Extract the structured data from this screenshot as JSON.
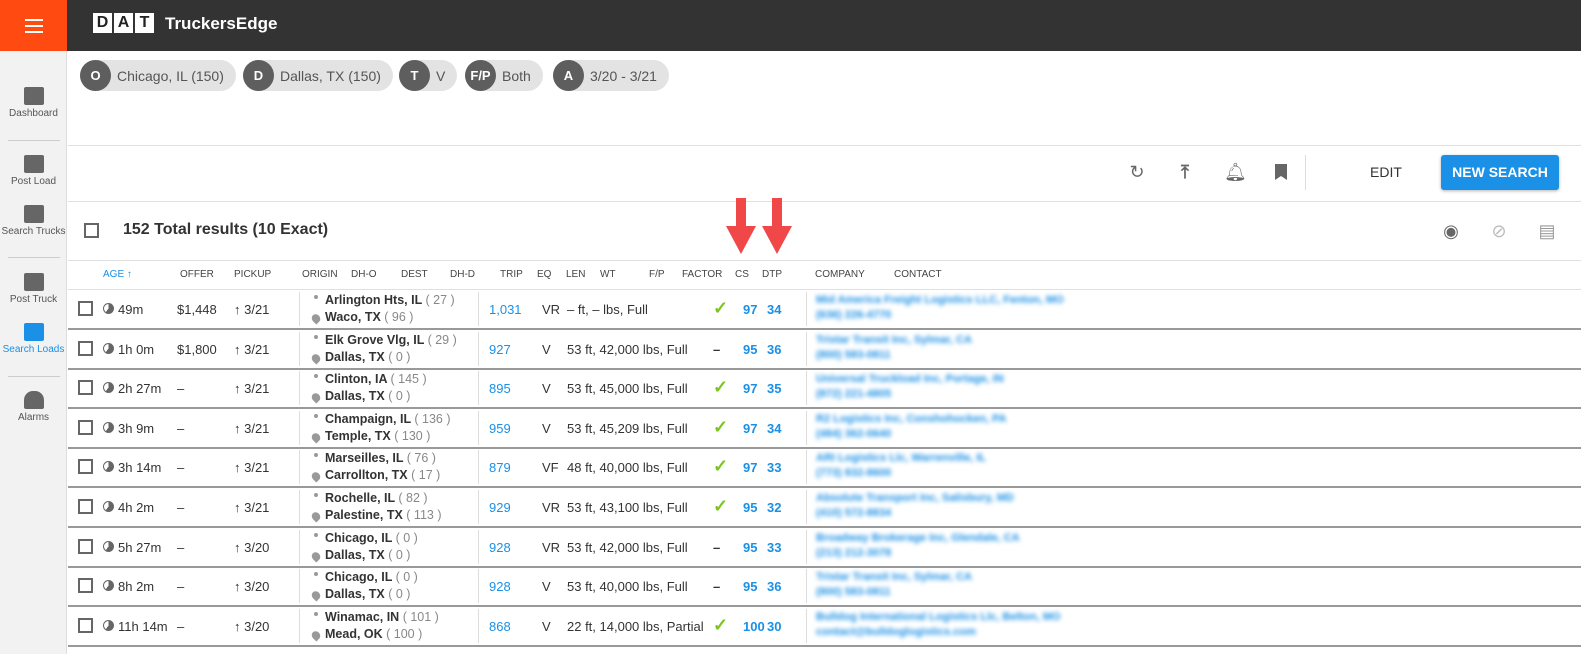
{
  "header": {
    "logo": "DAT",
    "brand": "TruckersEdge"
  },
  "sidebar": {
    "items": [
      {
        "label": "Dashboard"
      },
      {
        "label": "Post Load"
      },
      {
        "label": "Search Trucks"
      },
      {
        "label": "Post Truck"
      },
      {
        "label": "Search Loads",
        "active": true
      },
      {
        "label": "Alarms"
      }
    ]
  },
  "filters": [
    {
      "badge": "O",
      "value": "Chicago, IL (150)"
    },
    {
      "badge": "D",
      "value": "Dallas, TX (150)"
    },
    {
      "badge": "T",
      "value": "V"
    },
    {
      "badge": "F/P",
      "value": "Both"
    },
    {
      "badge": "A",
      "value": "3/20 - 3/21"
    }
  ],
  "toolbar": {
    "edit": "EDIT",
    "new_search": "NEW SEARCH"
  },
  "results": {
    "total": "152 Total results (10 Exact)"
  },
  "columns": [
    "AGE ↑",
    "OFFER",
    "PICKUP",
    "ORIGIN",
    "DH-O",
    "DEST",
    "DH-D",
    "TRIP",
    "EQ",
    "LEN",
    "WT",
    "F/P",
    "FACTOR",
    "CS",
    "DTP",
    "COMPANY",
    "CONTACT"
  ],
  "colors": {
    "accent": "#1a90e6",
    "menu": "#ff4a12",
    "check": "#7cc520",
    "annotation_arrow": "#f04848"
  },
  "rows": [
    {
      "age": "49m",
      "offer": "$1,448",
      "pickup": "↑ 3/21",
      "origin": "Arlington Hts, IL",
      "dho": "( 27 )",
      "dest": "Waco, TX",
      "dhd": "( 96 )",
      "trip": "1,031",
      "eq": "VR",
      "lenwt": "– ft, – lbs, Full",
      "factor": "✓",
      "cs": "97",
      "dtp": "34",
      "company": "Mid America Freight Logistics LLC, Fenton, MO",
      "contact": "(636) 226-4770"
    },
    {
      "age": "1h 0m",
      "offer": "$1,800",
      "pickup": "↑ 3/21",
      "origin": "Elk Grove Vlg, IL",
      "dho": "( 29 )",
      "dest": "Dallas, TX",
      "dhd": "( 0 )",
      "trip": "927",
      "eq": "V",
      "lenwt": "53 ft, 42,000 lbs, Full",
      "factor": "–",
      "cs": "95",
      "dtp": "36",
      "company": "Tristar Transit Inc, Sylmar, CA",
      "contact": "(800) 583-0811"
    },
    {
      "age": "2h 27m",
      "offer": "–",
      "pickup": "↑ 3/21",
      "origin": "Clinton, IA",
      "dho": "( 145 )",
      "dest": "Dallas, TX",
      "dhd": "( 0 )",
      "trip": "895",
      "eq": "V",
      "lenwt": "53 ft, 45,000 lbs, Full",
      "factor": "✓",
      "cs": "97",
      "dtp": "35",
      "company": "Universal Truckload Inc, Portage, IN",
      "contact": "(872) 221-4805"
    },
    {
      "age": "3h 9m",
      "offer": "–",
      "pickup": "↑ 3/21",
      "origin": "Champaign, IL",
      "dho": "( 136 )",
      "dest": "Temple, TX",
      "dhd": "( 130 )",
      "trip": "959",
      "eq": "V",
      "lenwt": "53 ft, 45,209 lbs, Full",
      "factor": "✓",
      "cs": "97",
      "dtp": "34",
      "company": "R2 Logistics Inc, Conshohocken, PA",
      "contact": "(484) 362-0640"
    },
    {
      "age": "3h 14m",
      "offer": "–",
      "pickup": "↑ 3/21",
      "origin": "Marseilles, IL",
      "dho": "( 76 )",
      "dest": "Carrollton, TX",
      "dhd": "( 17 )",
      "trip": "879",
      "eq": "VF",
      "lenwt": "48 ft, 40,000 lbs, Full",
      "factor": "✓",
      "cs": "97",
      "dtp": "33",
      "company": "ARI Logistics Llc, Warrenville, IL",
      "contact": "(773) 832-8600"
    },
    {
      "age": "4h 2m",
      "offer": "–",
      "pickup": "↑ 3/21",
      "origin": "Rochelle, IL",
      "dho": "( 82 )",
      "dest": "Palestine, TX",
      "dhd": "( 113 )",
      "trip": "929",
      "eq": "VR",
      "lenwt": "53 ft, 43,100 lbs, Full",
      "factor": "✓",
      "cs": "95",
      "dtp": "32",
      "company": "Absolute Transport Inc, Salisbury, MD",
      "contact": "(410) 572-8834"
    },
    {
      "age": "5h 27m",
      "offer": "–",
      "pickup": "↑ 3/20",
      "origin": "Chicago, IL",
      "dho": "( 0 )",
      "dest": "Dallas, TX",
      "dhd": "( 0 )",
      "trip": "928",
      "eq": "VR",
      "lenwt": "53 ft, 42,000 lbs, Full",
      "factor": "–",
      "cs": "95",
      "dtp": "33",
      "company": "Broadway Brokerage Inc, Glendale, CA",
      "contact": "(213) 212-3078"
    },
    {
      "age": "8h 2m",
      "offer": "–",
      "pickup": "↑ 3/20",
      "origin": "Chicago, IL",
      "dho": "( 0 )",
      "dest": "Dallas, TX",
      "dhd": "( 0 )",
      "trip": "928",
      "eq": "V",
      "lenwt": "53 ft, 40,000 lbs, Full",
      "factor": "–",
      "cs": "95",
      "dtp": "36",
      "company": "Tristar Transit Inc, Sylmar, CA",
      "contact": "(800) 583-0811"
    },
    {
      "age": "11h 14m",
      "offer": "–",
      "pickup": "↑ 3/20",
      "origin": "Winamac, IN",
      "dho": "( 101 )",
      "dest": "Mead, OK",
      "dhd": "( 100 )",
      "trip": "868",
      "eq": "V",
      "lenwt": "22 ft, 14,000 lbs, Partial",
      "factor": "✓",
      "cs": "100",
      "dtp": "30",
      "company": "Bulldog International Logistics Llc, Belton, MO",
      "contact": "contact@bulldoglogistics.com"
    }
  ]
}
